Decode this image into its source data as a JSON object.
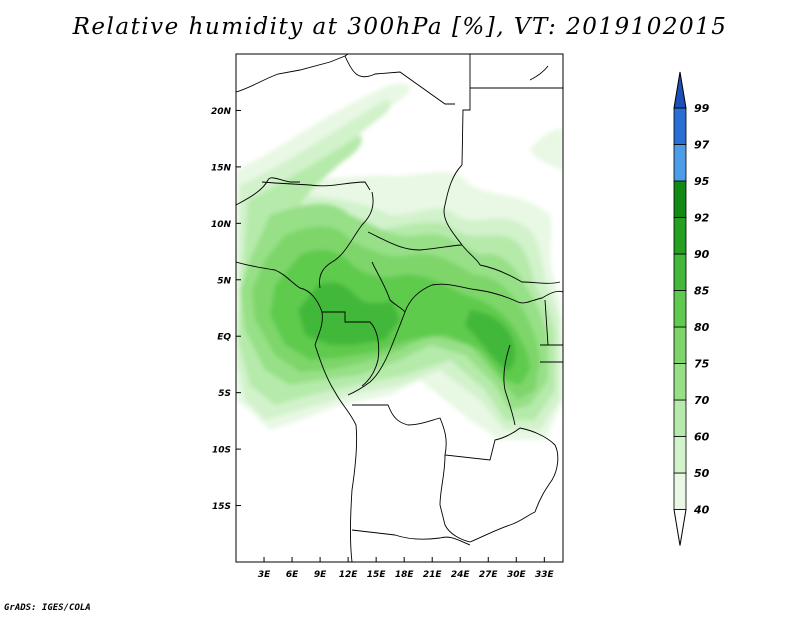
{
  "title": "Relative humidity at 300hPa [%], VT: 2019102015",
  "credit": "GrADS: IGES/COLA",
  "colors": {
    "rh_40": "#e8f8e4",
    "rh_50": "#d2f2cb",
    "rh_60": "#b5eaaa",
    "rh_70": "#97e087",
    "rh_75": "#7ed66b",
    "rh_80": "#5fcb4e",
    "rh_85": "#43b83a",
    "rh_90": "#25a021",
    "rh_92": "#138a14",
    "rh_95": "#4c9ce8",
    "rh_97": "#2a6fd6",
    "rh_99": "#1c4fb8"
  },
  "chart_data": {
    "type": "heatmap",
    "variable": "Relative humidity",
    "level": "300hPa",
    "units": "%",
    "valid_time": "2019102015",
    "lon_range": [
      0,
      35
    ],
    "lat_range": [
      -20,
      25
    ],
    "x_tick_labels": [
      "3E",
      "6E",
      "9E",
      "12E",
      "15E",
      "18E",
      "21E",
      "24E",
      "27E",
      "30E",
      "33E"
    ],
    "x_tick_values": [
      3,
      6,
      9,
      12,
      15,
      18,
      21,
      24,
      27,
      30,
      33
    ],
    "y_tick_labels": [
      "20N",
      "15N",
      "10N",
      "5N",
      "EQ",
      "5S",
      "10S",
      "15S"
    ],
    "y_tick_values": [
      20,
      15,
      10,
      5,
      0,
      -5,
      -10,
      -15
    ],
    "colorbar_levels": [
      "40",
      "50",
      "60",
      "70",
      "75",
      "80",
      "85",
      "90",
      "92",
      "95",
      "97",
      "99"
    ],
    "colorbar_values": [
      40,
      50,
      60,
      70,
      75,
      80,
      85,
      90,
      92,
      95,
      97,
      99
    ],
    "colorbar_extend": "both"
  }
}
